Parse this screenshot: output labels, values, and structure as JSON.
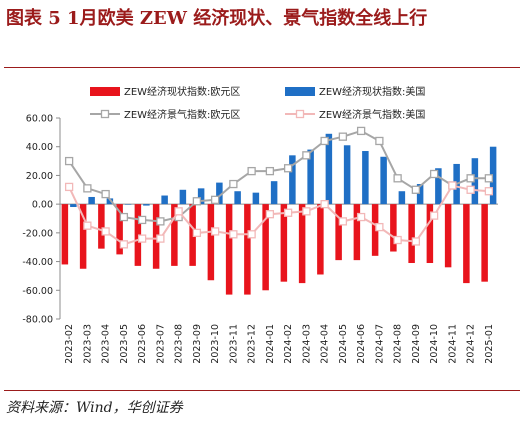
{
  "title": "图表 5   1月欧美 ZEW 经济现状、景气指数全线上行",
  "source": "资料来源：Wind，华创证券",
  "colors": {
    "eu_bar": "#e8141c",
    "us_bar": "#1f6fc5",
    "eu_line": "#a6a6a6",
    "us_line": "#f2b8b8",
    "axis": "#8c8c8c",
    "title": "#9b1b1b"
  },
  "chart_data": {
    "type": "bar+line",
    "categories": [
      "2023-02",
      "2023-03",
      "2023-04",
      "2023-05",
      "2023-06",
      "2023-07",
      "2023-08",
      "2023-09",
      "2023-10",
      "2023-11",
      "2023-12",
      "2024-01",
      "2024-02",
      "2024-03",
      "2024-04",
      "2024-05",
      "2024-06",
      "2024-07",
      "2024-08",
      "2024-09",
      "2024-10",
      "2024-11",
      "2024-12",
      "2025-01"
    ],
    "ylim": [
      -80,
      60
    ],
    "yticks": [
      -80,
      -60,
      -40,
      -20,
      0,
      20,
      40,
      60
    ],
    "ytick_labels": [
      "-80.00",
      "-60.00",
      "-40.00",
      "-20.00",
      "0.00",
      "20.00",
      "40.00",
      "60.00"
    ],
    "legend": [
      "ZEW经济现状指数:欧元区",
      "ZEW经济现状指数:美国",
      "ZEW经济景气指数:欧元区",
      "ZEW经济景气指数:美国"
    ],
    "series": [
      {
        "name": "ZEW经济现状指数:欧元区",
        "kind": "bar",
        "values": [
          -42,
          -45,
          -31,
          -35,
          -43,
          -45,
          -43,
          -43,
          -53,
          -63,
          -63,
          -60,
          -54,
          -55,
          -49,
          -39,
          -39,
          -36,
          -33,
          -41,
          -41,
          -44,
          -55,
          -54
        ]
      },
      {
        "name": "ZEW经济现状指数:美国",
        "kind": "bar",
        "values": [
          -2,
          5,
          4,
          0,
          -1,
          6,
          10,
          11,
          15,
          9,
          8,
          16,
          34,
          38,
          49,
          41,
          37,
          33,
          9,
          14,
          25,
          28,
          32,
          40
        ]
      },
      {
        "name": "ZEW经济景气指数:欧元区",
        "kind": "line",
        "values": [
          30,
          11,
          7,
          -9,
          -11,
          -12,
          -9,
          2,
          3,
          14,
          23,
          23,
          25,
          34,
          44,
          47,
          51,
          44,
          18,
          10,
          21,
          13,
          18,
          18
        ]
      },
      {
        "name": "ZEW经济景气指数:美国",
        "kind": "line",
        "values": [
          12,
          -15,
          -19,
          -28,
          -24,
          -24,
          -5,
          -20,
          -19,
          -21,
          -21,
          -7,
          -6,
          -5,
          0,
          -12,
          -9,
          -16,
          -25,
          -26,
          -8,
          13,
          10,
          9
        ]
      }
    ]
  }
}
